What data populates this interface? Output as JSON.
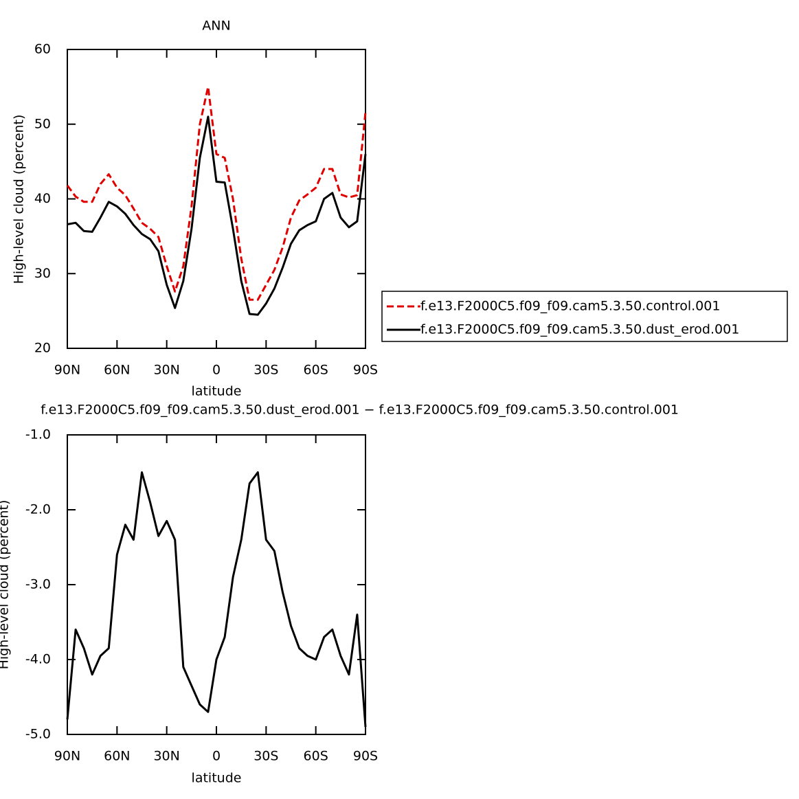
{
  "chart_data": [
    {
      "type": "line",
      "title": "ANN",
      "xlabel": "latitude",
      "ylabel": "High-level cloud (percent)",
      "x": [
        90,
        85,
        80,
        75,
        70,
        65,
        60,
        55,
        50,
        45,
        40,
        35,
        30,
        25,
        20,
        15,
        10,
        5,
        0,
        -5,
        -10,
        -15,
        -20,
        -25,
        -30,
        -35,
        -40,
        -45,
        -50,
        -55,
        -60,
        -65,
        -70,
        -75,
        -80,
        -85,
        -90
      ],
      "series": [
        {
          "name": "f.e13.F2000C5.f09_f09.cam5.3.50.control.001",
          "color": "#e00000",
          "dash": true,
          "values": [
            41.8,
            40.3,
            39.6,
            39.6,
            42.0,
            43.3,
            41.5,
            40.5,
            38.7,
            36.8,
            36.0,
            34.9,
            31.0,
            27.6,
            31.0,
            39.0,
            50.0,
            55.0,
            46.0,
            45.5,
            40.0,
            32.0,
            26.5,
            26.5,
            28.5,
            30.5,
            33.5,
            37.5,
            39.8,
            40.6,
            41.5,
            44.0,
            44.0,
            40.6,
            40.2,
            40.5,
            51.6
          ]
        },
        {
          "name": "f.e13.F2000C5.f09_f09.cam5.3.50.dust_erod.001",
          "color": "#000000",
          "dash": false,
          "values": [
            36.6,
            36.8,
            35.7,
            35.6,
            37.5,
            39.6,
            39.0,
            38.0,
            36.5,
            35.3,
            34.6,
            33.0,
            28.5,
            25.4,
            29.0,
            36.0,
            45.5,
            51.0,
            42.3,
            42.2,
            36.0,
            29.0,
            24.6,
            24.5,
            26.0,
            28.0,
            30.8,
            34.0,
            35.8,
            36.5,
            37.0,
            40.0,
            40.8,
            37.5,
            36.2,
            37.0,
            46.0
          ]
        }
      ],
      "xlim": [
        90,
        -90
      ],
      "xticks": [
        {
          "value": 90,
          "label": "90N"
        },
        {
          "value": 60,
          "label": "60N"
        },
        {
          "value": 30,
          "label": "30N"
        },
        0,
        {
          "value": -30,
          "label": "30S"
        },
        {
          "value": -60,
          "label": "60S"
        },
        {
          "value": -90,
          "label": "90S"
        }
      ],
      "ylim": [
        20,
        60
      ],
      "yticks": [
        20,
        30,
        40,
        50,
        60
      ],
      "legend": "right"
    },
    {
      "type": "line",
      "title": "f.e13.F2000C5.f09_f09.cam5.3.50.dust_erod.001 − f.e13.F2000C5.f09_f09.cam5.3.50.control.001",
      "xlabel": "latitude",
      "ylabel": "High-level cloud (percent)",
      "x": [
        90,
        85,
        80,
        75,
        70,
        65,
        60,
        55,
        50,
        45,
        40,
        35,
        30,
        25,
        20,
        15,
        10,
        5,
        0,
        -5,
        -10,
        -15,
        -20,
        -25,
        -30,
        -35,
        -40,
        -45,
        -50,
        -55,
        -60,
        -65,
        -70,
        -75,
        -80,
        -85,
        -90
      ],
      "color": "#000000",
      "values": [
        -4.8,
        -3.6,
        -3.85,
        -4.2,
        -3.95,
        -3.85,
        -2.6,
        -2.2,
        -2.4,
        -1.5,
        -1.9,
        -2.35,
        -2.15,
        -2.4,
        -4.1,
        -4.35,
        -4.6,
        -4.7,
        -4.0,
        -3.7,
        -2.9,
        -2.4,
        -1.65,
        -1.5,
        -2.4,
        -2.55,
        -3.1,
        -3.55,
        -3.85,
        -3.95,
        -4.0,
        -3.7,
        -3.6,
        -3.95,
        -4.2,
        -3.4,
        -4.9
      ],
      "xlim": [
        90,
        -90
      ],
      "xticks": [
        {
          "value": 90,
          "label": "90N"
        },
        {
          "value": 60,
          "label": "60N"
        },
        {
          "value": 30,
          "label": "30N"
        },
        0,
        {
          "value": -30,
          "label": "30S"
        },
        {
          "value": -60,
          "label": "60S"
        },
        {
          "value": -90,
          "label": "90S"
        }
      ],
      "ylim": [
        -5,
        -1
      ],
      "yticks": [
        {
          "value": -5,
          "label": "-5.0"
        },
        {
          "value": -4,
          "label": "-4.0"
        },
        {
          "value": -3,
          "label": "-3.0"
        },
        {
          "value": -2,
          "label": "-2.0"
        },
        {
          "value": -1,
          "label": "-1.0"
        }
      ]
    }
  ]
}
